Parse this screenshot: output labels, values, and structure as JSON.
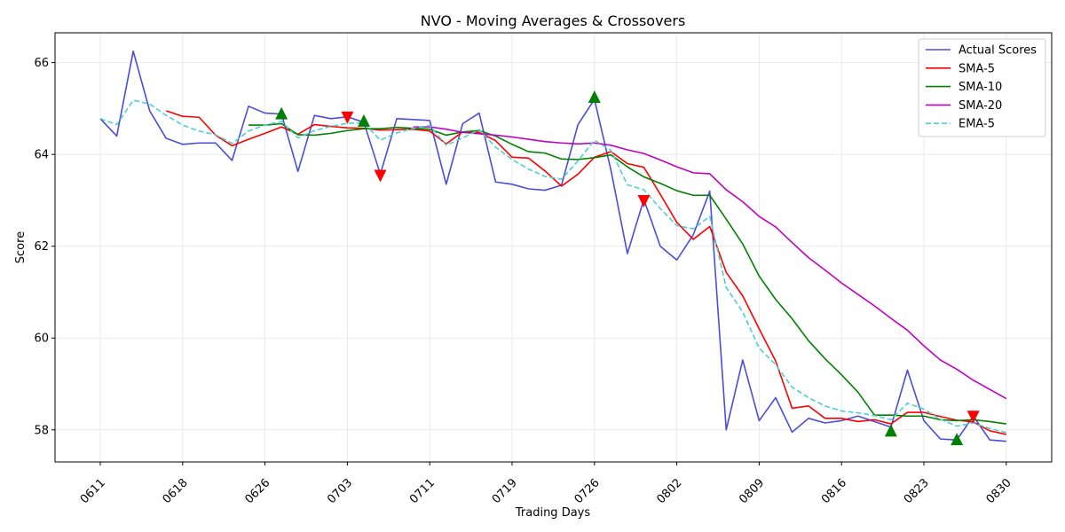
{
  "chart_data": {
    "type": "line",
    "title": "NVO - Moving Averages & Crossovers",
    "xlabel": "Trading Days",
    "ylabel": "Score",
    "ylim": [
      57.3,
      66.65
    ],
    "yticks": [
      58,
      60,
      62,
      64,
      66
    ],
    "xticks": [
      {
        "index": 0,
        "label": "0611"
      },
      {
        "index": 5,
        "label": "0618"
      },
      {
        "index": 10,
        "label": "0626"
      },
      {
        "index": 15,
        "label": "0703"
      },
      {
        "index": 20,
        "label": "0711"
      },
      {
        "index": 25,
        "label": "0719"
      },
      {
        "index": 30,
        "label": "0726"
      },
      {
        "index": 35,
        "label": "0802"
      },
      {
        "index": 40,
        "label": "0809"
      },
      {
        "index": 45,
        "label": "0816"
      },
      {
        "index": 50,
        "label": "0823"
      },
      {
        "index": 55,
        "label": "0830"
      }
    ],
    "grid": true,
    "legend_position": "upper right",
    "series": [
      {
        "name": "Actual Scores",
        "color": "#4b4bde",
        "style": "solid",
        "start": 0,
        "values": [
          64.78,
          64.4,
          66.25,
          64.95,
          64.35,
          64.22,
          64.25,
          64.25,
          63.87,
          65.05,
          64.9,
          64.88,
          63.63,
          64.85,
          64.78,
          64.82,
          64.7,
          63.57,
          64.78,
          64.76,
          64.74,
          63.35,
          64.67,
          64.9,
          63.4,
          63.35,
          63.25,
          63.22,
          63.33,
          64.65,
          65.2,
          63.66,
          61.84,
          63.02,
          62.0,
          61.7,
          62.25,
          63.2,
          58.0,
          59.52,
          58.2,
          58.7,
          57.95,
          58.25,
          58.15,
          58.2,
          58.3,
          58.18,
          58.06,
          59.3,
          58.2,
          57.8,
          57.78,
          58.3,
          57.78,
          57.75
        ]
      },
      {
        "name": "SMA-5",
        "color": "#ff0000",
        "style": "solid",
        "start": 4,
        "values": [
          64.95,
          64.83,
          64.81,
          64.42,
          64.19,
          64.33,
          64.46,
          64.6,
          64.44,
          64.65,
          64.61,
          64.58,
          64.57,
          64.53,
          64.54,
          64.55,
          64.51,
          64.23,
          64.49,
          64.48,
          64.3,
          63.94,
          63.92,
          63.64,
          63.31,
          63.57,
          63.94,
          64.06,
          63.8,
          63.72,
          63.13,
          62.52,
          62.15,
          62.43,
          61.43,
          60.92,
          60.2,
          59.5,
          58.47,
          58.52,
          58.25,
          58.25,
          58.18,
          58.22,
          58.13,
          58.38,
          58.38,
          58.29,
          58.21,
          58.17,
          57.98,
          57.9
        ]
      },
      {
        "name": "SMA-10",
        "color": "#008000",
        "style": "solid",
        "start": 9,
        "values": [
          64.64,
          64.64,
          64.67,
          64.43,
          64.42,
          64.46,
          64.52,
          64.56,
          64.56,
          64.59,
          64.57,
          64.55,
          64.42,
          64.49,
          64.52,
          64.4,
          64.22,
          64.06,
          64.03,
          63.9,
          63.89,
          63.93,
          63.99,
          63.73,
          63.51,
          63.37,
          63.21,
          63.11,
          63.11,
          62.59,
          62.05,
          61.35,
          60.84,
          60.42,
          59.94,
          59.55,
          59.2,
          58.82,
          58.32,
          58.32,
          58.3,
          58.3,
          58.22,
          58.2,
          58.22,
          58.18,
          58.13
        ]
      },
      {
        "name": "SMA-20",
        "color": "#c000c0",
        "style": "solid",
        "start": 19,
        "values": [
          64.6,
          64.6,
          64.55,
          64.48,
          64.45,
          64.42,
          64.38,
          64.33,
          64.28,
          64.25,
          64.23,
          64.25,
          64.2,
          64.1,
          64.02,
          63.88,
          63.73,
          63.6,
          63.58,
          63.23,
          62.97,
          62.65,
          62.42,
          62.08,
          61.75,
          61.48,
          61.2,
          60.95,
          60.7,
          60.43,
          60.17,
          59.83,
          59.52,
          59.32,
          59.08,
          58.88,
          58.68
        ]
      },
      {
        "name": "EMA-5",
        "color": "#4dd0d0",
        "style": "dashed",
        "start": 0,
        "values": [
          64.78,
          64.65,
          65.18,
          65.1,
          64.85,
          64.64,
          64.51,
          64.43,
          64.24,
          64.51,
          64.64,
          64.72,
          64.36,
          64.52,
          64.61,
          64.68,
          64.69,
          64.31,
          64.47,
          64.57,
          64.63,
          64.2,
          64.36,
          64.54,
          64.16,
          63.89,
          63.68,
          63.52,
          63.46,
          63.86,
          64.31,
          64.09,
          63.34,
          63.23,
          62.82,
          62.45,
          62.38,
          62.65,
          61.1,
          60.57,
          59.78,
          59.42,
          58.93,
          58.7,
          58.52,
          58.41,
          58.37,
          58.31,
          58.22,
          58.58,
          58.45,
          58.23,
          58.08,
          58.15,
          58.03,
          57.94
        ]
      }
    ],
    "markers": [
      {
        "index": 11,
        "value": 64.88,
        "type": "bullish",
        "color": "#008000"
      },
      {
        "index": 16,
        "value": 64.72,
        "type": "bullish",
        "color": "#008000"
      },
      {
        "index": 30,
        "value": 65.24,
        "type": "bullish",
        "color": "#008000"
      },
      {
        "index": 48,
        "value": 57.97,
        "type": "bullish",
        "color": "#008000"
      },
      {
        "index": 52,
        "value": 57.78,
        "type": "bullish",
        "color": "#008000"
      },
      {
        "index": 15,
        "value": 64.82,
        "type": "bearish",
        "color": "#ff0000"
      },
      {
        "index": 17,
        "value": 63.55,
        "type": "bearish",
        "color": "#ff0000"
      },
      {
        "index": 33,
        "value": 63.0,
        "type": "bearish",
        "color": "#ff0000"
      },
      {
        "index": 53,
        "value": 58.3,
        "type": "bearish",
        "color": "#ff0000"
      }
    ],
    "legend": [
      "Actual Scores",
      "SMA-5",
      "SMA-10",
      "SMA-20",
      "EMA-5"
    ]
  }
}
